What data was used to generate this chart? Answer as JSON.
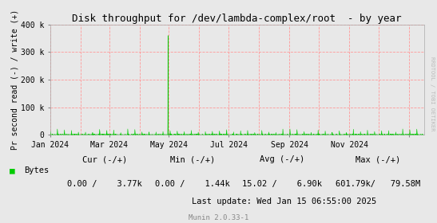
{
  "title": "Disk throughput for /dev/lambda-complex/root  - by year",
  "ylabel": "Pr second read (-) / write (+)",
  "bg_color": "#e8e8e8",
  "plot_bg_color": "#e8e8e8",
  "grid_color": "#ff9999",
  "line_color": "#00cc00",
  "zero_line_color": "#000000",
  "watermark": "RRDTOOL / TOBI OETIKER",
  "munin_label": "Munin 2.0.33-1",
  "ylim": [
    0,
    400000
  ],
  "yticks": [
    0,
    100000,
    200000,
    300000,
    400000
  ],
  "ytick_labels": [
    "0",
    "100 k",
    "200 k",
    "300 k",
    "400 k"
  ],
  "legend_label": "Bytes",
  "cur_label": "Cur (-/+)",
  "min_label": "Min (-/+)",
  "avg_label": "Avg (-/+)",
  "max_label": "Max (-/+)",
  "cur_val": "0.00 /    3.77k",
  "min_val": "0.00 /    1.44k",
  "avg_val": "15.02 /    6.90k",
  "max_val": "601.79k/   79.58M",
  "last_update": "Last update: Wed Jan 15 06:55:00 2025",
  "xstart": 1704067200,
  "xend": 1736985600,
  "spike_x": 1714435200,
  "spike_y": 360000,
  "vline_positions": [
    1704067200,
    1706745600,
    1709251200,
    1711929600,
    1714521600,
    1717200000,
    1719792000,
    1722470400,
    1725148800,
    1727740800,
    1730419200,
    1733011200,
    1735689600
  ],
  "xtick_positions": [
    1704067200,
    1709251200,
    1714521600,
    1719792000,
    1725148800,
    1730419200,
    1735689600
  ],
  "xtick_labels": [
    "Jan 2024",
    "Mar 2024",
    "May 2024",
    "Jul 2024",
    "Sep 2024",
    "Nov 2024",
    ""
  ]
}
